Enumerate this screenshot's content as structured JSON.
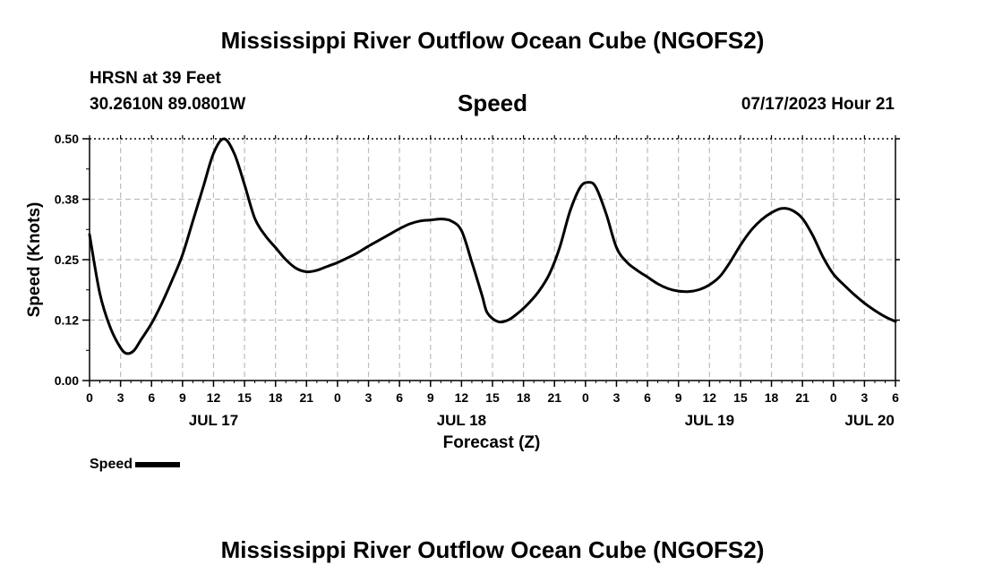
{
  "page": {
    "title": "Mississippi River Outflow Ocean Cube (NGOFS2)",
    "footer_title": "Mississippi River Outflow Ocean Cube (NGOFS2)",
    "station": "HRSN at 39 Feet",
    "coordinates": "30.2610N  89.0801W",
    "variable": "Speed",
    "timestamp": "07/17/2023 Hour 21"
  },
  "chart_data": {
    "type": "line",
    "title": "Speed",
    "xlabel": "Forecast (Z)",
    "ylabel": "Speed (Knots)",
    "xlim": [
      0,
      78
    ],
    "ylim": [
      0,
      0.5
    ],
    "grid": true,
    "legend_position": "bottom-left",
    "y_ticks": [
      {
        "value": 0,
        "label": "0.00"
      },
      {
        "value": 0.125,
        "label": "0.12"
      },
      {
        "value": 0.25,
        "label": "0.25"
      },
      {
        "value": 0.375,
        "label": "0.38"
      },
      {
        "value": 0.5,
        "label": "0.50"
      }
    ],
    "x_ticks": [
      {
        "hour": 0,
        "label": "0"
      },
      {
        "hour": 3,
        "label": "3"
      },
      {
        "hour": 6,
        "label": "6"
      },
      {
        "hour": 9,
        "label": "9"
      },
      {
        "hour": 12,
        "label": "12"
      },
      {
        "hour": 15,
        "label": "15"
      },
      {
        "hour": 18,
        "label": "18"
      },
      {
        "hour": 21,
        "label": "21"
      },
      {
        "hour": 24,
        "label": "0"
      },
      {
        "hour": 27,
        "label": "3"
      },
      {
        "hour": 30,
        "label": "6"
      },
      {
        "hour": 33,
        "label": "9"
      },
      {
        "hour": 36,
        "label": "12"
      },
      {
        "hour": 39,
        "label": "15"
      },
      {
        "hour": 42,
        "label": "18"
      },
      {
        "hour": 45,
        "label": "21"
      },
      {
        "hour": 48,
        "label": "0"
      },
      {
        "hour": 51,
        "label": "3"
      },
      {
        "hour": 54,
        "label": "6"
      },
      {
        "hour": 57,
        "label": "9"
      },
      {
        "hour": 60,
        "label": "12"
      },
      {
        "hour": 63,
        "label": "15"
      },
      {
        "hour": 66,
        "label": "18"
      },
      {
        "hour": 69,
        "label": "21"
      },
      {
        "hour": 72,
        "label": "0"
      },
      {
        "hour": 75,
        "label": "3"
      },
      {
        "hour": 78,
        "label": "6"
      }
    ],
    "day_labels": [
      {
        "hour": 12,
        "label": "JUL 17"
      },
      {
        "hour": 36,
        "label": "JUL 18"
      },
      {
        "hour": 60,
        "label": "JUL 19"
      },
      {
        "hour": 75.5,
        "label": "JUL 20"
      }
    ],
    "series": [
      {
        "name": "Speed",
        "color": "#000000",
        "x": [
          0,
          1,
          2,
          3,
          3.6,
          4.3,
          5,
          6,
          7,
          8,
          9,
          10,
          11,
          12,
          13,
          14,
          15,
          16,
          17,
          18,
          19,
          20,
          21,
          22,
          23,
          24,
          25,
          26,
          27,
          28,
          29,
          30,
          31,
          32,
          33,
          34,
          35,
          36,
          37,
          38,
          38.5,
          39.5,
          40.5,
          41.5,
          42.5,
          43.5,
          44.5,
          45.5,
          46.5,
          47.5,
          48.3,
          49,
          50,
          51,
          52,
          53,
          54,
          55,
          56,
          57,
          58,
          59,
          60,
          61,
          62,
          63,
          64,
          65,
          66,
          67,
          68,
          69,
          70,
          71,
          72,
          73,
          74,
          75,
          76,
          77,
          78
        ],
        "values": [
          0.302,
          0.18,
          0.11,
          0.068,
          0.056,
          0.062,
          0.085,
          0.118,
          0.16,
          0.208,
          0.26,
          0.33,
          0.4,
          0.47,
          0.5,
          0.47,
          0.405,
          0.335,
          0.3,
          0.275,
          0.25,
          0.232,
          0.225,
          0.228,
          0.236,
          0.244,
          0.254,
          0.265,
          0.278,
          0.29,
          0.302,
          0.314,
          0.324,
          0.33,
          0.332,
          0.334,
          0.33,
          0.31,
          0.245,
          0.175,
          0.14,
          0.122,
          0.125,
          0.14,
          0.16,
          0.185,
          0.22,
          0.275,
          0.35,
          0.4,
          0.41,
          0.4,
          0.345,
          0.275,
          0.245,
          0.228,
          0.214,
          0.2,
          0.19,
          0.185,
          0.184,
          0.188,
          0.198,
          0.215,
          0.245,
          0.28,
          0.31,
          0.332,
          0.347,
          0.356,
          0.352,
          0.335,
          0.3,
          0.255,
          0.22,
          0.198,
          0.178,
          0.16,
          0.145,
          0.132,
          0.122
        ]
      }
    ]
  }
}
